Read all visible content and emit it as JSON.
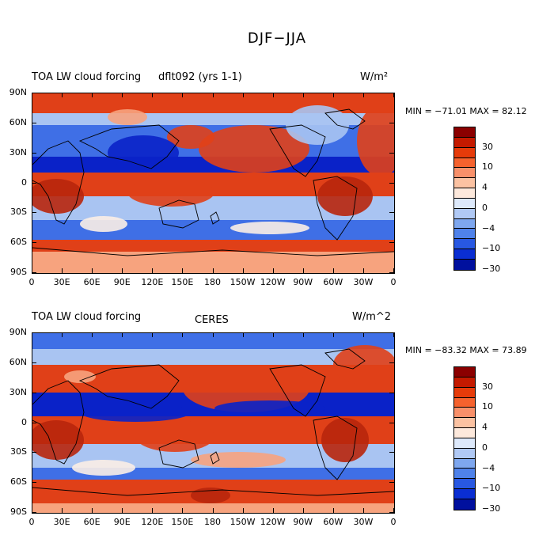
{
  "figure_title": "DJF−JJA",
  "panels": [
    {
      "title_left": "TOA LW cloud forcing",
      "title_center": "dflt092 (yrs 1-1)",
      "units": "W/m²",
      "min_max": "MIN = −71.01 MAX =  82.12"
    },
    {
      "title_left": "TOA LW cloud forcing",
      "title_center": "CERES",
      "units": "W/m^2",
      "min_max": "MIN = −83.32 MAX =  73.89"
    }
  ],
  "lat_labels": [
    "90N",
    "60N",
    "30N",
    "0",
    "30S",
    "60S",
    "90S"
  ],
  "lon_labels": [
    "0",
    "30E",
    "60E",
    "90E",
    "120E",
    "150E",
    "180",
    "150W",
    "120W",
    "90W",
    "60W",
    "30W",
    "0"
  ],
  "colorbar_labels": [
    "30",
    "10",
    "4",
    "0",
    "−4",
    "−10",
    "−30"
  ],
  "colorbar_colors": [
    "#8b0000",
    "#c41a00",
    "#e63b0a",
    "#f5622e",
    "#f8906a",
    "#fbc2a2",
    "#fde9dc",
    "#dde9fb",
    "#b0c9f5",
    "#7ea7ef",
    "#4f82ea",
    "#2858e2",
    "#0a2ed2",
    "#00109e"
  ],
  "map_colors": {
    "strong_red": "#b8260c",
    "red": "#e04018",
    "light_red": "#f7a37e",
    "neutral": "#fbeee6",
    "light_blue": "#a9c4f2",
    "blue": "#3f6fe6",
    "strong_blue": "#0a22c8"
  }
}
